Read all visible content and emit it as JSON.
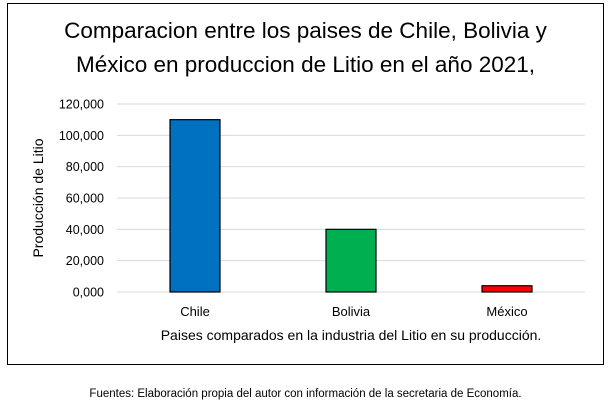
{
  "chart_data": {
    "type": "bar",
    "title_lines": [
      "Comparacion entre los paises de Chile, Bolivia y",
      "México en produccion de Litio en el año 2021,"
    ],
    "xlabel": "Paises comparados en la industria del Litio en su producción.",
    "ylabel": "Producción de Litio",
    "categories": [
      "Chile",
      "Bolivia",
      "México"
    ],
    "values": [
      110000,
      40000,
      4000
    ],
    "bar_colors": [
      "#0070C0",
      "#00B050",
      "#FF0000"
    ],
    "ylim": [
      0,
      120000
    ],
    "yticks": [
      0,
      20000,
      40000,
      60000,
      80000,
      100000,
      120000
    ],
    "ytick_labels": [
      "0,000",
      "20,000",
      "40,000",
      "60,000",
      "80,000",
      "100,000",
      "120,000"
    ],
    "grid": true,
    "legend": false
  },
  "footer": "Fuentes: Elaboración propia del autor con información de la secretaria de Economía."
}
